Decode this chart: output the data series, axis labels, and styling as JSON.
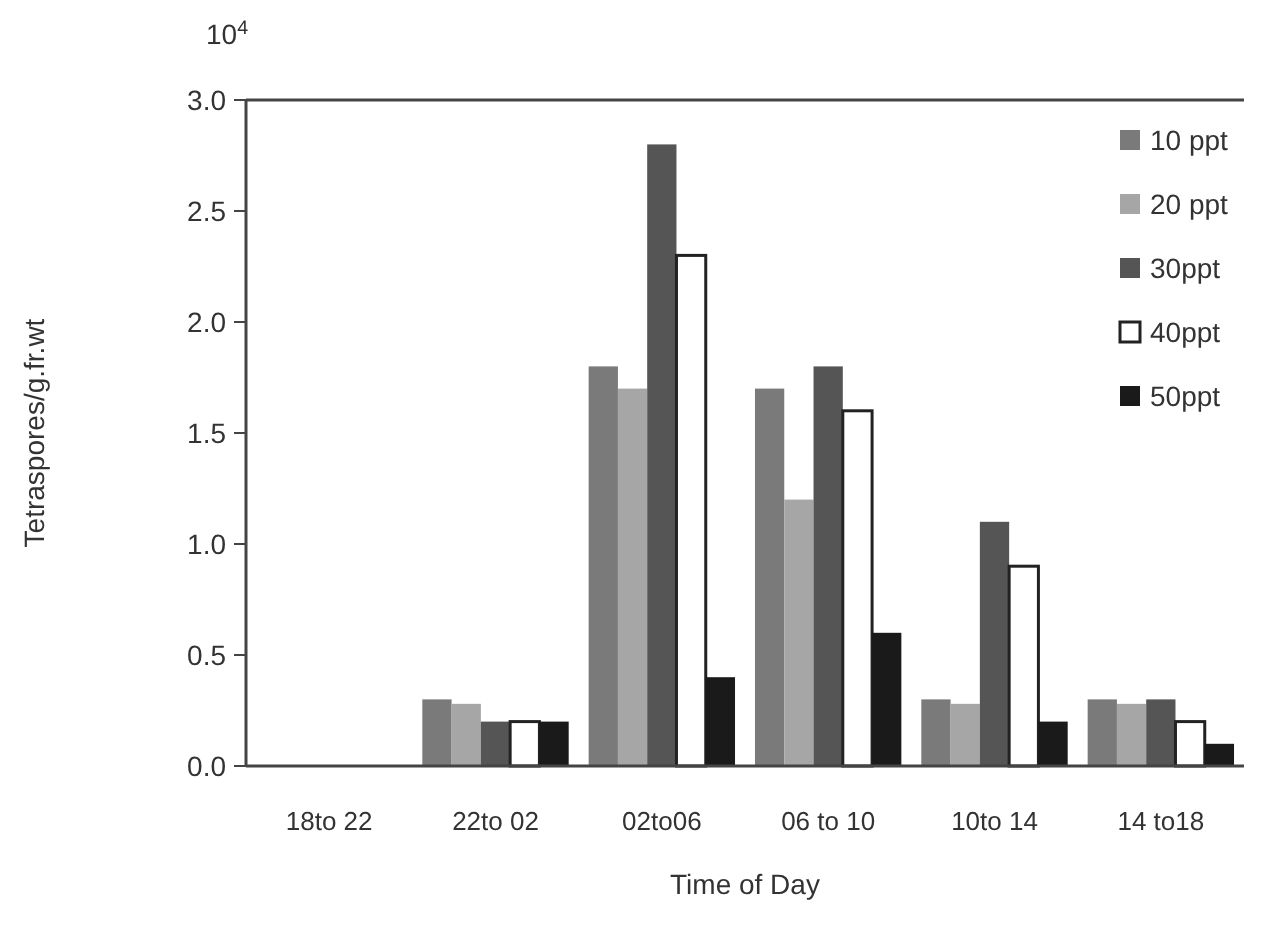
{
  "chart_data": {
    "type": "bar",
    "xlabel": "Time of Day",
    "ylabel": "Tetraspores/g.fr.wt",
    "annotations": [
      "10$^{4}$"
    ],
    "categories": [
      "18to 22",
      "22to 02",
      "02to06",
      "06 to 10",
      "10to 14",
      "14 to18"
    ],
    "series": [
      {
        "name": "10 ppt",
        "color": "#7a7a7a",
        "values": [
          0,
          0.3,
          1.8,
          1.7,
          0.3,
          0.3
        ]
      },
      {
        "name": "20 ppt",
        "color": "#a6a6a6",
        "values": [
          0,
          0.28,
          1.7,
          1.2,
          0.28,
          0.28
        ]
      },
      {
        "name": "30ppt",
        "color": "#555555",
        "values": [
          0,
          0.2,
          2.8,
          1.8,
          1.1,
          0.3
        ]
      },
      {
        "name": "40ppt",
        "color": "#ffffff",
        "values": [
          0,
          0.2,
          2.3,
          1.6,
          0.9,
          0.2
        ]
      },
      {
        "name": "50ppt",
        "color": "#1a1a1a",
        "values": [
          0,
          0.2,
          0.4,
          0.6,
          0.2,
          0.1
        ]
      }
    ],
    "ylim": [
      0,
      3
    ],
    "yticks": [
      {
        "value": 0,
        "label": "0.0"
      },
      {
        "value": 0.5,
        "label": "0.5"
      },
      {
        "value": 1,
        "label": "1.0"
      },
      {
        "value": 1.5,
        "label": "1.5"
      },
      {
        "value": 2,
        "label": "2.0"
      },
      {
        "value": 2.5,
        "label": "2.5"
      },
      {
        "value": 3,
        "label": "3.0"
      }
    ],
    "grid": false,
    "legend": "top right"
  }
}
